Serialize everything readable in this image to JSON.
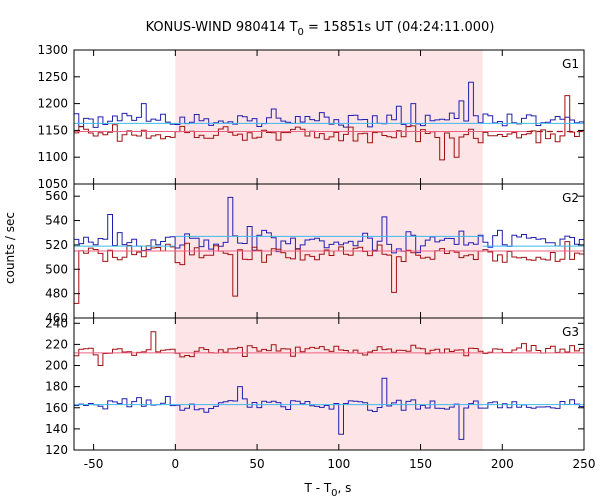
{
  "chart_data": {
    "type": "line",
    "title_parts": {
      "prefix": "KONUS-WIND 980414 T",
      "subscript": "0",
      "suffix": " = 15851s UT (04:24:11.000)"
    },
    "xlabel_parts": {
      "prefix": "T - T",
      "subscript": "0",
      "suffix": ", s"
    },
    "ylabel": "counts / sec",
    "xlim": [
      -62,
      250
    ],
    "xticks": [
      -50,
      0,
      50,
      100,
      150,
      200,
      250
    ],
    "highlight_region": [
      0,
      188
    ],
    "colors": {
      "series_a": "#2020b0",
      "series_b": "#a01010",
      "fit_a": "#3fb8ee",
      "fit_b": "#ee6080",
      "highlight": "#fde4e6"
    },
    "panels": [
      {
        "label": "G1",
        "ylim": [
          1050,
          1300
        ],
        "yticks": [
          1050,
          1100,
          1150,
          1200,
          1250,
          1300
        ],
        "bin_start": -62,
        "bin_width": 2.944,
        "series": [
          {
            "color_key": "series_a",
            "seed": 11,
            "mean": 1168,
            "amp": 22,
            "spikes": [
              [
                180,
                1240
              ],
              [
                176,
                1205
              ],
              [
                -18,
                1200
              ],
              [
                60,
                1190
              ],
              [
                145,
                1200
              ],
              [
                138,
                1195
              ]
            ]
          },
          {
            "color_key": "series_b",
            "seed": 27,
            "mean": 1143,
            "amp": 24,
            "spikes": [
              [
                240,
                1215
              ],
              [
                163,
                1095
              ],
              [
                172,
                1100
              ]
            ]
          }
        ],
        "fits": [
          {
            "color_key": "fit_a",
            "segments": [
              [
                [
                  -62,
                  1163
                ],
                [
                  250,
                  1163
                ]
              ]
            ],
            "dashed_after": null
          },
          {
            "color_key": "fit_b",
            "segments": [
              [
                [
                  -62,
                  1148
                ],
                [
                  250,
                  1148
                ]
              ]
            ],
            "dashed_after": 215
          }
        ]
      },
      {
        "label": "G2",
        "ylim": [
          460,
          570
        ],
        "yticks": [
          460,
          480,
          500,
          520,
          540,
          560
        ],
        "bin_start": -62,
        "bin_width": 2.944,
        "series": [
          {
            "color_key": "series_a",
            "seed": 5,
            "mean": 523,
            "amp": 13,
            "spikes": [
              [
                33,
                559
              ],
              [
                -40,
                545
              ],
              [
                127,
                543
              ]
            ]
          },
          {
            "color_key": "series_b",
            "seed": 43,
            "mean": 513,
            "amp": 12,
            "spikes": [
              [
                -60,
                472
              ],
              [
                37,
                478
              ],
              [
                133,
                481
              ]
            ]
          }
        ],
        "fits": [
          {
            "color_key": "fit_a",
            "segments": [
              [
                [
                  -62,
                  519
                ],
                [
                  0,
                  519
                ]
              ],
              [
                [
                  0,
                  527
                ],
                [
                  188,
                  527
                ]
              ],
              [
                [
                  188,
                  519
                ],
                [
                  250,
                  519
                ]
              ]
            ],
            "dashed_after": null
          },
          {
            "color_key": "fit_b",
            "segments": [
              [
                [
                  -62,
                  515
                ],
                [
                  250,
                  515
                ]
              ]
            ],
            "dashed_after": null
          }
        ]
      },
      {
        "label": "G3",
        "ylim": [
          120,
          245
        ],
        "yticks": [
          120,
          140,
          160,
          180,
          200,
          220,
          240
        ],
        "bin_start": -62,
        "bin_width": 2.944,
        "series": [
          {
            "color_key": "series_a",
            "seed": 19,
            "mean": 163,
            "amp": 9,
            "spikes": [
              [
                102,
                135
              ],
              [
                176,
                130
              ],
              [
                128,
                188
              ],
              [
                40,
                180
              ]
            ]
          },
          {
            "color_key": "series_b",
            "seed": 31,
            "mean": 214,
            "amp": 8,
            "spikes": [
              [
                -13,
                232
              ],
              [
                -45,
                200
              ]
            ]
          }
        ],
        "fits": [
          {
            "color_key": "fit_a",
            "segments": [
              [
                [
                  -62,
                  163
                ],
                [
                  250,
                  163
                ]
              ]
            ],
            "dashed_after": null
          },
          {
            "color_key": "fit_b",
            "segments": [
              [
                [
                  -62,
                  212
                ],
                [
                  250,
                  212
                ]
              ]
            ],
            "dashed_after": null
          }
        ]
      }
    ]
  }
}
